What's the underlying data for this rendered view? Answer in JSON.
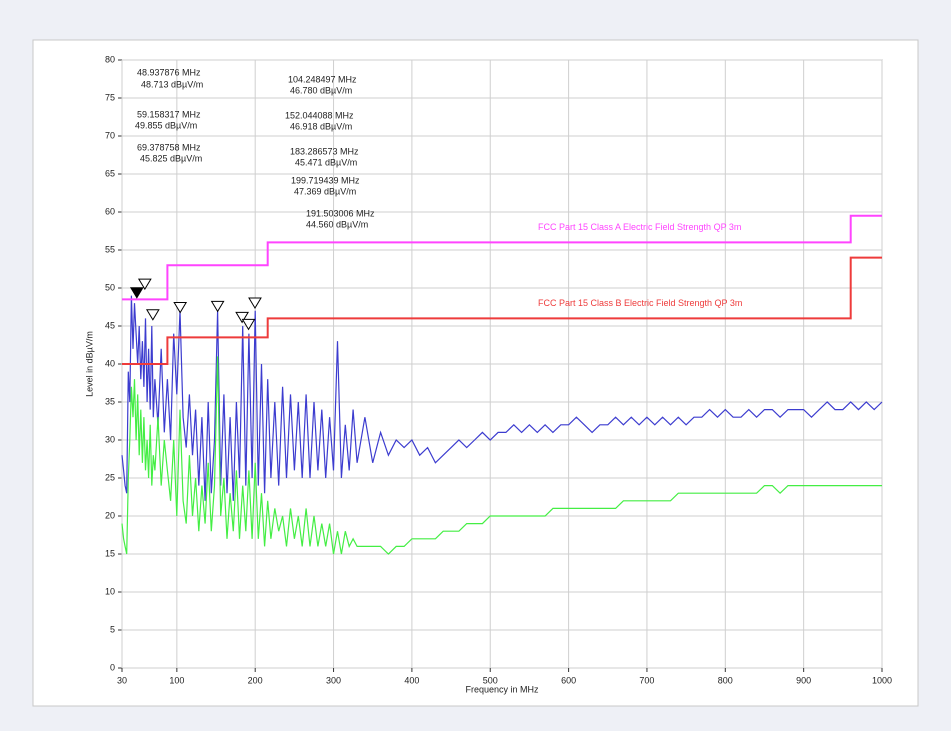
{
  "chart_data": {
    "type": "line",
    "xlabel": "Frequency in MHz",
    "ylabel": "Level in dBµV/m",
    "xlim": [
      30,
      1000
    ],
    "ylim": [
      0,
      80
    ],
    "xticks": [
      30,
      100,
      200,
      300,
      400,
      500,
      600,
      700,
      800,
      900,
      1000
    ],
    "yticks": [
      0,
      5,
      10,
      15,
      20,
      25,
      30,
      35,
      40,
      45,
      50,
      55,
      60,
      65,
      70,
      75,
      80
    ],
    "grid": true,
    "series": [
      {
        "color": "#3c3ccf",
        "x": [
          30,
          32,
          34,
          36,
          38,
          40,
          42,
          44,
          46,
          48,
          50,
          52,
          54,
          56,
          58,
          60,
          62,
          64,
          66,
          68,
          70,
          72,
          76,
          80,
          84,
          88,
          92,
          96,
          100,
          104,
          108,
          112,
          116,
          120,
          124,
          128,
          132,
          136,
          140,
          144,
          148,
          152,
          156,
          160,
          164,
          168,
          172,
          176,
          180,
          184,
          188,
          192,
          196,
          200,
          204,
          208,
          212,
          216,
          220,
          225,
          230,
          235,
          240,
          245,
          250,
          255,
          260,
          265,
          270,
          275,
          280,
          285,
          290,
          295,
          300,
          305,
          310,
          315,
          320,
          325,
          330,
          340,
          350,
          360,
          370,
          380,
          390,
          400,
          410,
          420,
          430,
          440,
          450,
          460,
          470,
          480,
          490,
          500,
          510,
          520,
          530,
          540,
          550,
          560,
          570,
          580,
          590,
          600,
          610,
          620,
          630,
          640,
          650,
          660,
          670,
          680,
          690,
          700,
          710,
          720,
          730,
          740,
          750,
          760,
          770,
          780,
          790,
          800,
          810,
          820,
          830,
          840,
          850,
          860,
          870,
          880,
          890,
          900,
          910,
          920,
          930,
          940,
          950,
          960,
          970,
          980,
          990,
          1000
        ],
        "values": [
          28,
          26,
          24,
          23,
          39,
          35,
          49,
          42,
          48,
          44,
          40,
          45,
          38,
          43,
          37,
          46,
          35,
          42,
          34,
          45,
          33,
          38,
          32,
          42,
          31,
          38,
          30,
          44,
          36,
          47,
          33,
          29,
          36,
          28,
          34,
          24,
          33,
          22,
          35,
          23,
          30,
          47,
          24,
          36,
          23,
          33,
          22,
          35,
          25,
          45,
          24,
          44,
          25,
          47,
          24,
          40,
          23,
          38,
          25,
          35,
          24,
          37,
          25,
          36,
          26,
          35,
          25,
          36,
          25,
          35,
          26,
          34,
          25,
          33,
          26,
          43,
          25,
          32,
          26,
          34,
          27,
          33,
          27,
          31,
          28,
          30,
          29,
          30,
          28,
          29,
          27,
          28,
          29,
          30,
          29,
          30,
          31,
          30,
          31,
          31,
          32,
          31,
          32,
          31,
          32,
          31,
          32,
          32,
          33,
          32,
          31,
          32,
          32,
          33,
          32,
          33,
          32,
          33,
          32,
          33,
          32,
          33,
          32,
          33,
          33,
          34,
          33,
          34,
          33,
          33,
          34,
          33,
          34,
          34,
          33,
          34,
          34,
          34,
          33,
          34,
          35,
          34,
          34,
          35,
          34,
          35,
          34,
          35
        ]
      },
      {
        "color": "#44ee44",
        "x": [
          30,
          32,
          34,
          36,
          38,
          40,
          42,
          44,
          46,
          48,
          50,
          52,
          54,
          56,
          58,
          60,
          62,
          64,
          66,
          68,
          70,
          72,
          76,
          80,
          84,
          88,
          92,
          96,
          100,
          104,
          108,
          112,
          116,
          120,
          124,
          128,
          132,
          136,
          140,
          144,
          148,
          152,
          156,
          160,
          164,
          168,
          172,
          176,
          180,
          184,
          188,
          192,
          196,
          200,
          204,
          208,
          212,
          216,
          220,
          225,
          230,
          235,
          240,
          245,
          250,
          255,
          260,
          265,
          270,
          275,
          280,
          285,
          290,
          295,
          300,
          305,
          310,
          315,
          320,
          325,
          330,
          340,
          350,
          360,
          370,
          380,
          390,
          400,
          410,
          420,
          430,
          440,
          450,
          460,
          470,
          480,
          490,
          500,
          510,
          520,
          530,
          540,
          550,
          560,
          570,
          580,
          590,
          600,
          610,
          620,
          630,
          640,
          650,
          660,
          670,
          680,
          690,
          700,
          710,
          720,
          730,
          740,
          750,
          760,
          770,
          780,
          790,
          800,
          810,
          820,
          830,
          840,
          850,
          860,
          870,
          880,
          890,
          900,
          910,
          920,
          930,
          940,
          950,
          960,
          970,
          980,
          990,
          1000
        ],
        "values": [
          19,
          17,
          16,
          15,
          25,
          30,
          37,
          33,
          38,
          30,
          36,
          28,
          34,
          27,
          33,
          26,
          30,
          25,
          32,
          24,
          28,
          26,
          33,
          24,
          30,
          26,
          22,
          30,
          20,
          34,
          22,
          19,
          28,
          20,
          25,
          18,
          24,
          19,
          27,
          18,
          24,
          41,
          20,
          25,
          17,
          23,
          18,
          26,
          17,
          24,
          18,
          26,
          17,
          27,
          17,
          23,
          16,
          22,
          17,
          21,
          18,
          20,
          16,
          21,
          17,
          20,
          16,
          21,
          16,
          20,
          16,
          19,
          16,
          19,
          15,
          18,
          15,
          18,
          16,
          17,
          16,
          16,
          16,
          16,
          15,
          16,
          16,
          17,
          17,
          17,
          17,
          18,
          18,
          18,
          19,
          19,
          19,
          20,
          20,
          20,
          20,
          20,
          20,
          20,
          20,
          21,
          21,
          21,
          21,
          21,
          21,
          21,
          21,
          21,
          22,
          22,
          22,
          22,
          22,
          22,
          22,
          23,
          23,
          23,
          23,
          23,
          23,
          23,
          23,
          23,
          23,
          23,
          24,
          24,
          23,
          24,
          24,
          24,
          24,
          24,
          24,
          24,
          24,
          24,
          24,
          24,
          24,
          24
        ]
      },
      {
        "name": "FCC Part 15 Class A Electric Field Strength QP 3m",
        "color": "#ff44ff",
        "x": [
          30,
          88,
          88,
          216,
          216,
          960,
          960,
          1000
        ],
        "values": [
          48.5,
          48.5,
          53,
          53,
          56,
          56,
          59.5,
          59.5
        ]
      },
      {
        "name": "FCC Part 15 Class B Electric Field Strength QP 3m",
        "color": "#ee3b3b",
        "x": [
          30,
          88,
          88,
          216,
          216,
          960,
          960,
          1000
        ],
        "values": [
          40,
          40,
          43.5,
          43.5,
          46,
          46,
          54,
          54
        ]
      }
    ],
    "markers": [
      {
        "x": 48.937876,
        "y": 48.713,
        "labels": [
          "48.937876 MHz",
          "48.713 dBµV/m"
        ]
      },
      {
        "x": 59.158317,
        "y": 49.855,
        "labels": [
          "59.158317 MHz",
          "49.855 dBµV/m"
        ]
      },
      {
        "x": 69.378758,
        "y": 45.825,
        "labels": [
          "69.378758 MHz",
          "45.825 dBµV/m"
        ]
      },
      {
        "x": 104.248497,
        "y": 46.78,
        "labels": [
          "104.248497 MHz",
          "46.780 dBµV/m"
        ]
      },
      {
        "x": 152.044088,
        "y": 46.918,
        "labels": [
          "152.044088 MHz",
          "46.918 dBµV/m"
        ]
      },
      {
        "x": 183.286573,
        "y": 45.471,
        "labels": [
          "183.286573 MHz",
          "45.471 dBµV/m"
        ]
      },
      {
        "x": 199.719439,
        "y": 47.369,
        "labels": [
          "199.719439 MHz",
          "47.369 dBµV/m"
        ]
      },
      {
        "x": 191.503006,
        "y": 44.56,
        "labels": [
          "191.503006 MHz",
          "44.560 dBµV/m"
        ]
      }
    ]
  }
}
